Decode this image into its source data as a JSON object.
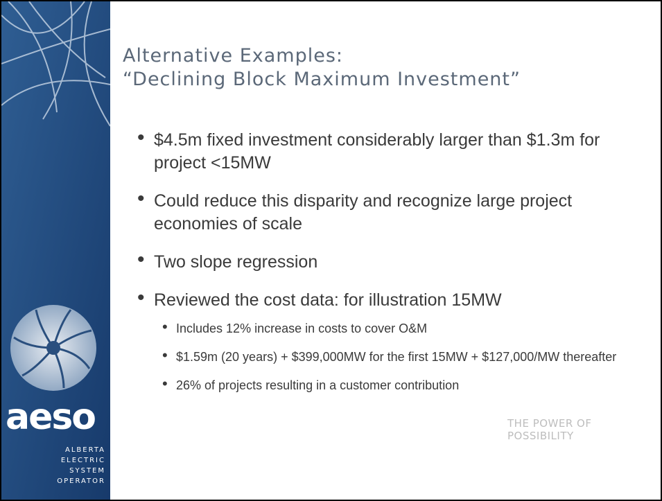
{
  "header": {
    "title": [
      "Alternative Examples:",
      "“Declining Block Maximum Investment”"
    ]
  },
  "bullets": [
    {
      "text": "$4.5m fixed investment considerably larger than $1.3m for project <15MW"
    },
    {
      "text": "Could reduce this disparity and recognize large project economies of scale"
    },
    {
      "text": "Two slope regression"
    },
    {
      "text": "Reviewed the cost data: for illustration 15MW",
      "sub": [
        "Includes 12% increase in costs to cover O&M",
        "$1.59m (20 years) + $399,000MW for the first 15MW + $127,000/MW thereafter",
        "26% of projects resulting in a customer contribution"
      ]
    }
  ],
  "logo": {
    "name": "aeso",
    "subtitle": [
      "ALBERTA",
      "ELECTRIC",
      "SYSTEM",
      "OPERATOR"
    ]
  },
  "footer": "THE POWER OF POSSIBILITY"
}
